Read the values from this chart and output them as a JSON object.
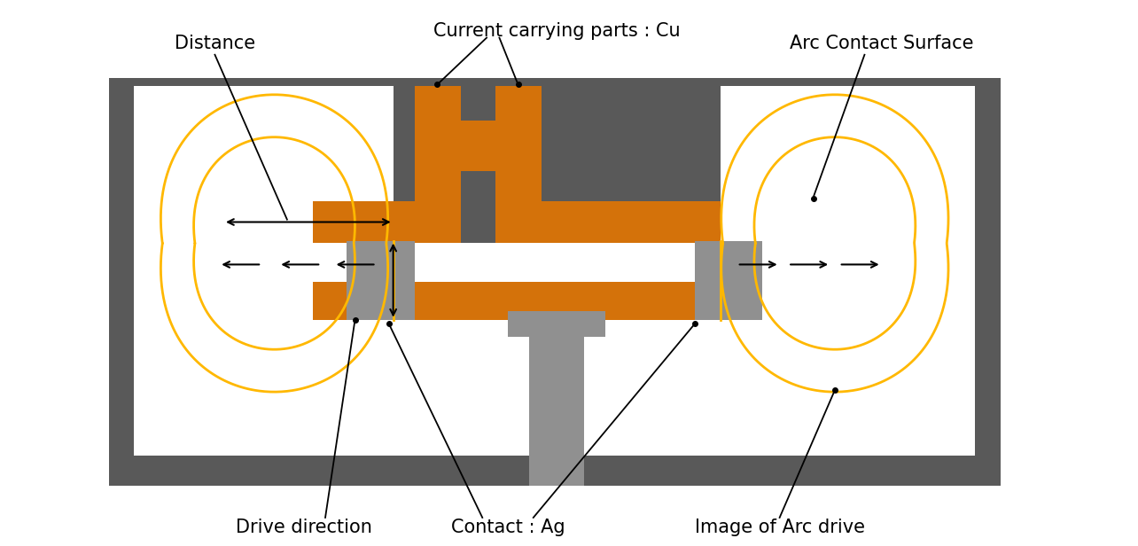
{
  "bg_color": "#ffffff",
  "dark_gray": "#595959",
  "orange": "#D4720A",
  "light_gray": "#B0B0B0",
  "med_gray": "#909090",
  "yellow": "#FFB800",
  "white": "#ffffff",
  "labels": {
    "current_carrying": "Current carrying parts : Cu",
    "distance": "Distance",
    "arc_contact": "Arc Contact Surface",
    "drive_direction": "Drive direction",
    "contact_ag": "Contact : Ag",
    "image_arc": "Image of Arc drive"
  },
  "fig_width": 12.84,
  "fig_height": 6.16
}
